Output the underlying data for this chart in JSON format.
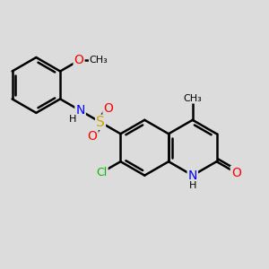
{
  "background_color": "#dcdcdc",
  "bond_color": "#000000",
  "bond_width": 1.8,
  "colors": {
    "N": "#0000ff",
    "O": "#ff0000",
    "S": "#ccaa00",
    "Cl": "#00bb00",
    "C": "#000000",
    "H": "#000000"
  },
  "font_size": 9,
  "figsize": [
    3.0,
    3.0
  ],
  "dpi": 100,
  "xlim": [
    0,
    10
  ],
  "ylim": [
    0,
    10
  ]
}
